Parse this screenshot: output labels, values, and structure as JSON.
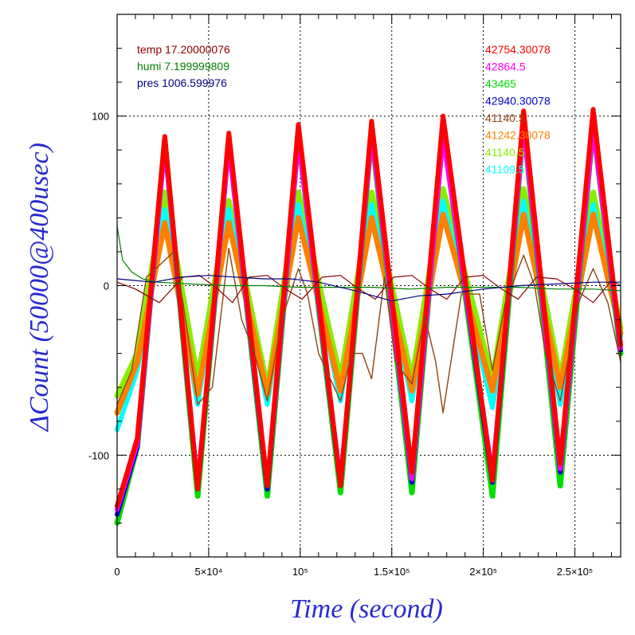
{
  "chart_data": {
    "type": "line",
    "title": "",
    "xlabel": "Time (second)",
    "ylabel": "ΔCount (50000@400usec)",
    "xlim": [
      0,
      275000
    ],
    "ylim": [
      -160,
      160
    ],
    "grid": true,
    "x_ticks": [
      {
        "value": 0,
        "label": "0"
      },
      {
        "value": 50000,
        "label": "5×10⁴"
      },
      {
        "value": 100000,
        "label": "10⁵"
      },
      {
        "value": 150000,
        "label": "1.5×10⁵"
      },
      {
        "value": 200000,
        "label": "2×10⁵"
      },
      {
        "value": 250000,
        "label": "2.5×10⁵"
      }
    ],
    "y_ticks": [
      {
        "value": 100,
        "label": "100"
      },
      {
        "value": 0,
        "label": "0"
      },
      {
        "value": -100,
        "label": "-100"
      }
    ],
    "legend_left": [
      {
        "text": "temp 17.20000076",
        "color": "#8b0000"
      },
      {
        "text": "humi 7.199999809",
        "color": "#008000"
      },
      {
        "text": "pres 1006.599976",
        "color": "#000080"
      }
    ],
    "legend_right": [
      {
        "text": "42754.30078",
        "color": "#ff0000"
      },
      {
        "text": "42864.5",
        "color": "#ff00ff"
      },
      {
        "text": "43465",
        "color": "#00dd00"
      },
      {
        "text": "42940.30078",
        "color": "#0000cc"
      },
      {
        "text": "41140.5",
        "color": "#8b4513"
      },
      {
        "text": "41242.30078",
        "color": "#ff8000"
      },
      {
        "text": "41140.5",
        "color": "#88ee00"
      },
      {
        "text": "41109.5",
        "color": "#00ffff"
      }
    ],
    "series": [
      {
        "color": "#88ee00",
        "width": 7,
        "x": [
          0,
          11000,
          26000,
          44000,
          61000,
          82000,
          99000,
          122000,
          139000,
          161000,
          178000,
          205000,
          222000,
          242000,
          260000,
          275000
        ],
        "y": [
          -65,
          -40,
          55,
          -55,
          50,
          -60,
          55,
          -55,
          55,
          -55,
          57,
          -55,
          57,
          -55,
          55,
          -25
        ]
      },
      {
        "color": "#00ffff",
        "width": 6,
        "x": [
          0,
          11000,
          26000,
          44000,
          61000,
          82000,
          99000,
          122000,
          139000,
          161000,
          178000,
          205000,
          222000,
          242000,
          260000,
          275000
        ],
        "y": [
          -85,
          -50,
          45,
          -70,
          45,
          -70,
          48,
          -68,
          48,
          -68,
          50,
          -72,
          50,
          -70,
          48,
          -30
        ]
      },
      {
        "color": "#ff8000",
        "width": 7,
        "x": [
          0,
          11000,
          26000,
          44000,
          61000,
          82000,
          99000,
          122000,
          139000,
          161000,
          178000,
          205000,
          222000,
          242000,
          260000,
          275000
        ],
        "y": [
          -75,
          -45,
          37,
          -64,
          37,
          -64,
          40,
          -62,
          40,
          -62,
          42,
          -62,
          42,
          -60,
          42,
          -28
        ]
      },
      {
        "color": "#00dd00",
        "width": 7,
        "x": [
          0,
          11000,
          26000,
          44000,
          61000,
          82000,
          99000,
          122000,
          139000,
          161000,
          178000,
          205000,
          222000,
          242000,
          260000,
          275000
        ],
        "y": [
          -140,
          -95,
          86,
          -124,
          86,
          -124,
          88,
          -122,
          90,
          -122,
          92,
          -124,
          95,
          -118,
          94,
          -40
        ]
      },
      {
        "color": "#0000cc",
        "width": 6,
        "x": [
          0,
          11000,
          26000,
          44000,
          61000,
          82000,
          99000,
          122000,
          139000,
          161000,
          178000,
          205000,
          222000,
          242000,
          260000,
          275000
        ],
        "y": [
          -135,
          -95,
          84,
          -120,
          84,
          -120,
          88,
          -118,
          92,
          -116,
          90,
          -116,
          96,
          -110,
          95,
          -38
        ]
      },
      {
        "color": "#ff00ff",
        "width": 6,
        "x": [
          0,
          11000,
          26000,
          44000,
          61000,
          82000,
          99000,
          122000,
          139000,
          161000,
          178000,
          205000,
          222000,
          242000,
          260000,
          275000
        ],
        "y": [
          -132,
          -93,
          83,
          -118,
          83,
          -118,
          86,
          -116,
          90,
          -114,
          88,
          -112,
          94,
          -108,
          93,
          -37
        ]
      },
      {
        "color": "#ff0000",
        "width": 6,
        "x": [
          0,
          11000,
          26000,
          44000,
          61000,
          82000,
          99000,
          122000,
          139000,
          161000,
          178000,
          205000,
          222000,
          242000,
          260000,
          275000
        ],
        "y": [
          -130,
          -90,
          88,
          -120,
          90,
          -118,
          95,
          -118,
          97,
          -110,
          100,
          -115,
          103,
          -105,
          104,
          -35
        ]
      },
      {
        "color": "#8b4513",
        "width": 1.4,
        "x": [
          0,
          8000,
          16000,
          26000,
          31000,
          36000,
          44000,
          52000,
          61000,
          68000,
          75000,
          82000,
          90000,
          99000,
          104000,
          110000,
          122000,
          128000,
          134000,
          139000,
          146000,
          152000,
          161000,
          168000,
          174000,
          178000,
          188000,
          198000,
          205000,
          212000,
          222000,
          228000,
          234000,
          242000,
          252000,
          260000,
          268000,
          275000
        ],
        "y": [
          -70,
          -50,
          5,
          15,
          20,
          -10,
          -70,
          -60,
          22,
          -20,
          -40,
          -68,
          -20,
          10,
          -5,
          -40,
          -68,
          -40,
          -40,
          -55,
          5,
          -45,
          -58,
          -18,
          -45,
          -75,
          -5,
          -5,
          -50,
          -10,
          18,
          0,
          -40,
          -68,
          -10,
          10,
          -10,
          -45
        ]
      },
      {
        "color": "#8b0000",
        "width": 1.2,
        "x": [
          0,
          10000,
          23000,
          36000,
          45000,
          55000,
          63000,
          72000,
          82000,
          92000,
          101000,
          112000,
          122000,
          132000,
          141000,
          151000,
          161000,
          171000,
          180000,
          190000,
          200000,
          210000,
          219000,
          229000,
          240000,
          250000,
          260000,
          270000,
          275000
        ],
        "y": [
          2,
          -2,
          -10,
          5,
          6,
          -2,
          -10,
          5,
          6,
          -2,
          -8,
          5,
          6,
          -2,
          -8,
          5,
          6,
          -2,
          -8,
          5,
          6,
          -2,
          -8,
          5,
          4,
          -2,
          -10,
          3,
          0
        ]
      },
      {
        "color": "#008000",
        "width": 1.2,
        "x": [
          0,
          3000,
          8000,
          14000,
          22000,
          40000,
          60000,
          80000,
          100000,
          120000,
          140000,
          160000,
          180000,
          200000,
          220000,
          240000,
          260000,
          275000
        ],
        "y": [
          35,
          15,
          8,
          4,
          2,
          1,
          0,
          0,
          -1,
          -1,
          -1,
          -2,
          -1,
          -1,
          -1,
          -2,
          -2,
          -3
        ]
      },
      {
        "color": "#000080",
        "width": 1.2,
        "x": [
          0,
          10000,
          20000,
          35000,
          50000,
          65000,
          80000,
          95000,
          110000,
          130000,
          150000,
          165000,
          180000,
          200000,
          220000,
          240000,
          260000,
          275000
        ],
        "y": [
          4,
          3,
          2,
          5,
          6,
          5,
          4,
          4,
          2,
          -3,
          -9,
          -6,
          -5,
          -2,
          0,
          1,
          2,
          2
        ]
      }
    ]
  }
}
